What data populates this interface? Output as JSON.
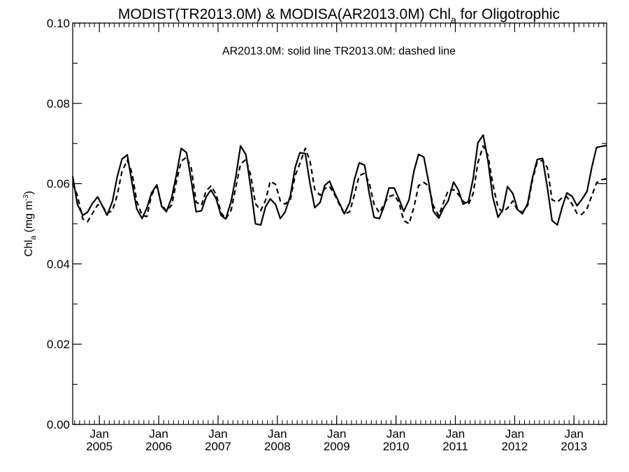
{
  "chart_data": {
    "type": "line",
    "title_main": "MODIST(TR2013.0M) & MODISA(AR2013.0M)  Chl",
    "title_sub": "a",
    "title_tail": " for Oligotrophic",
    "annotation": "AR2013.0M: solid line   TR2013.0M: dashed line",
    "ylabel_main": "Chl",
    "ylabel_sub": "a",
    "ylabel_unit": " (mg m",
    "ylabel_exp": "-3",
    "ylabel_close": ")",
    "ylim": [
      0,
      0.1
    ],
    "y_ticks": [
      "0.00",
      "0.02",
      "0.04",
      "0.06",
      "0.08",
      "0.10"
    ],
    "xlim": [
      2004.55,
      2013.55
    ],
    "x_tick_labels": [
      {
        "month": "Jan",
        "year": "2005",
        "x": 2005.0
      },
      {
        "month": "Jan",
        "year": "2006",
        "x": 2006.0
      },
      {
        "month": "Jan",
        "year": "2007",
        "x": 2007.0
      },
      {
        "month": "Jan",
        "year": "2008",
        "x": 2008.0
      },
      {
        "month": "Jan",
        "year": "2009",
        "x": 2009.0
      },
      {
        "month": "Jan",
        "year": "2010",
        "x": 2010.0
      },
      {
        "month": "Jan",
        "year": "2011",
        "x": 2011.0
      },
      {
        "month": "Jan",
        "year": "2012",
        "x": 2012.0
      },
      {
        "month": "Jan",
        "year": "2013",
        "x": 2013.0
      }
    ],
    "series": [
      {
        "style": "solid",
        "x": [
          2004.55,
          2004.63,
          2004.72,
          2004.8,
          2004.88,
          2004.97,
          2005.05,
          2005.13,
          2005.22,
          2005.3,
          2005.38,
          2005.47,
          2005.55,
          2005.63,
          2005.72,
          2005.8,
          2005.88,
          2005.97,
          2006.05,
          2006.13,
          2006.22,
          2006.3,
          2006.38,
          2006.47,
          2006.55,
          2006.63,
          2006.72,
          2006.8,
          2006.88,
          2006.97,
          2007.05,
          2007.13,
          2007.22,
          2007.3,
          2007.38,
          2007.47,
          2007.55,
          2007.63,
          2007.72,
          2007.8,
          2007.88,
          2007.97,
          2008.05,
          2008.13,
          2008.22,
          2008.3,
          2008.38,
          2008.47,
          2008.55,
          2008.63,
          2008.72,
          2008.8,
          2008.88,
          2008.97,
          2009.05,
          2009.13,
          2009.22,
          2009.3,
          2009.38,
          2009.47,
          2009.55,
          2009.63,
          2009.72,
          2009.8,
          2009.88,
          2009.97,
          2010.05,
          2010.13,
          2010.22,
          2010.3,
          2010.38,
          2010.47,
          2010.55,
          2010.63,
          2010.72,
          2010.8,
          2010.88,
          2010.97,
          2011.05,
          2011.13,
          2011.22,
          2011.3,
          2011.38,
          2011.47,
          2011.55,
          2011.63,
          2011.72,
          2011.8,
          2011.88,
          2011.97,
          2012.05,
          2012.13,
          2012.22,
          2012.3,
          2012.38,
          2012.47,
          2012.55,
          2012.63,
          2012.72,
          2012.8,
          2012.88,
          2012.97,
          2013.05,
          2013.13,
          2013.22,
          2013.3,
          2013.38,
          2013.47,
          2013.55
        ],
        "y": [
          0.0618,
          0.0548,
          0.0521,
          0.0529,
          0.055,
          0.0567,
          0.0545,
          0.0521,
          0.0556,
          0.0617,
          0.0661,
          0.0672,
          0.0602,
          0.0537,
          0.0513,
          0.0539,
          0.0577,
          0.0597,
          0.0543,
          0.053,
          0.0566,
          0.0624,
          0.0688,
          0.0677,
          0.0606,
          0.053,
          0.0532,
          0.0567,
          0.0584,
          0.0562,
          0.0521,
          0.0512,
          0.0556,
          0.0617,
          0.0694,
          0.0672,
          0.059,
          0.05,
          0.0497,
          0.0542,
          0.0562,
          0.0548,
          0.0513,
          0.0529,
          0.057,
          0.064,
          0.0677,
          0.0675,
          0.06,
          0.054,
          0.0553,
          0.0596,
          0.0606,
          0.0575,
          0.055,
          0.0525,
          0.0553,
          0.0611,
          0.0652,
          0.0646,
          0.0575,
          0.0516,
          0.0513,
          0.0544,
          0.0589,
          0.0589,
          0.0562,
          0.0531,
          0.056,
          0.063,
          0.0673,
          0.0666,
          0.0604,
          0.0531,
          0.0514,
          0.0539,
          0.0557,
          0.0604,
          0.0584,
          0.0549,
          0.0555,
          0.0613,
          0.0702,
          0.0721,
          0.0657,
          0.0567,
          0.0516,
          0.0535,
          0.0593,
          0.0575,
          0.0535,
          0.0525,
          0.0551,
          0.0615,
          0.066,
          0.0663,
          0.0591,
          0.0508,
          0.0497,
          0.0541,
          0.0577,
          0.0568,
          0.0545,
          0.056,
          0.0581,
          0.0641,
          0.069,
          0.0693,
          0.0695
        ]
      },
      {
        "style": "dashed",
        "x": [
          2004.55,
          2004.63,
          2004.72,
          2004.8,
          2004.88,
          2004.97,
          2005.05,
          2005.13,
          2005.22,
          2005.3,
          2005.38,
          2005.47,
          2005.55,
          2005.63,
          2005.72,
          2005.8,
          2005.88,
          2005.97,
          2006.05,
          2006.13,
          2006.22,
          2006.3,
          2006.38,
          2006.47,
          2006.55,
          2006.63,
          2006.72,
          2006.8,
          2006.88,
          2006.97,
          2007.05,
          2007.13,
          2007.22,
          2007.3,
          2007.38,
          2007.47,
          2007.55,
          2007.63,
          2007.72,
          2007.8,
          2007.88,
          2007.97,
          2008.05,
          2008.13,
          2008.22,
          2008.3,
          2008.38,
          2008.47,
          2008.55,
          2008.63,
          2008.72,
          2008.8,
          2008.88,
          2008.97,
          2009.05,
          2009.13,
          2009.22,
          2009.3,
          2009.38,
          2009.47,
          2009.55,
          2009.63,
          2009.72,
          2009.8,
          2009.88,
          2009.97,
          2010.05,
          2010.13,
          2010.22,
          2010.3,
          2010.38,
          2010.47,
          2010.55,
          2010.63,
          2010.72,
          2010.8,
          2010.88,
          2010.97,
          2011.05,
          2011.13,
          2011.22,
          2011.3,
          2011.38,
          2011.47,
          2011.55,
          2011.63,
          2011.72,
          2011.8,
          2011.88,
          2011.97,
          2012.05,
          2012.13,
          2012.22,
          2012.3,
          2012.38,
          2012.47,
          2012.55,
          2012.63,
          2012.72,
          2012.8,
          2012.88,
          2012.97,
          2013.05,
          2013.13,
          2013.22,
          2013.3,
          2013.38,
          2013.47,
          2013.55
        ],
        "y": [
          0.06,
          0.057,
          0.0512,
          0.0505,
          0.0525,
          0.0547,
          0.0545,
          0.0526,
          0.0533,
          0.0571,
          0.063,
          0.0658,
          0.0627,
          0.0556,
          0.0521,
          0.0518,
          0.0572,
          0.0595,
          0.0547,
          0.0532,
          0.0547,
          0.0607,
          0.0656,
          0.0666,
          0.0638,
          0.0554,
          0.0546,
          0.0582,
          0.0594,
          0.0573,
          0.0528,
          0.0512,
          0.0534,
          0.0591,
          0.0649,
          0.066,
          0.0621,
          0.055,
          0.0533,
          0.0558,
          0.0606,
          0.0598,
          0.0557,
          0.0549,
          0.0561,
          0.062,
          0.065,
          0.0688,
          0.0656,
          0.0586,
          0.0571,
          0.0588,
          0.0593,
          0.0571,
          0.0546,
          0.0524,
          0.053,
          0.0573,
          0.062,
          0.0626,
          0.0601,
          0.0549,
          0.0527,
          0.055,
          0.0568,
          0.0572,
          0.0553,
          0.0508,
          0.05,
          0.054,
          0.0595,
          0.0603,
          0.0594,
          0.0545,
          0.052,
          0.0553,
          0.0583,
          0.0585,
          0.0573,
          0.0556,
          0.0548,
          0.0575,
          0.0652,
          0.0694,
          0.067,
          0.06,
          0.054,
          0.0529,
          0.0539,
          0.0557,
          0.0533,
          0.0529,
          0.0546,
          0.0609,
          0.0654,
          0.0658,
          0.064,
          0.056,
          0.0554,
          0.0565,
          0.0567,
          0.0548,
          0.0526,
          0.0523,
          0.0538,
          0.057,
          0.0602,
          0.061,
          0.0612
        ]
      }
    ]
  }
}
